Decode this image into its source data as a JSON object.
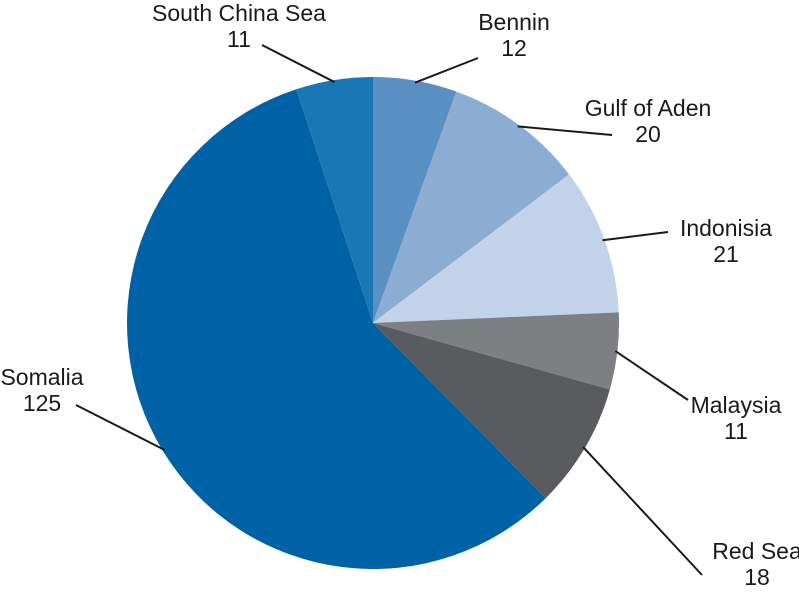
{
  "chart_data": {
    "type": "pie",
    "title": "",
    "slices": [
      {
        "name": "Bennin",
        "value": 12,
        "color": "#5a8fc3"
      },
      {
        "name": "Gulf of Aden",
        "value": 20,
        "color": "#8badd4"
      },
      {
        "name": "Indonisia",
        "value": 21,
        "color": "#c2d3e9"
      },
      {
        "name": "Malaysia",
        "value": 11,
        "color": "#7d7f83"
      },
      {
        "name": "Red Sea",
        "value": 18,
        "color": "#5a5b5e"
      },
      {
        "name": "Somalia",
        "value": 125,
        "color": "#0062a6"
      },
      {
        "name": "South China Sea",
        "value": 11,
        "color": "#1a77b6"
      }
    ],
    "start_angle": "12 o'clock",
    "direction": "clockwise",
    "legend": "none",
    "label_placement": "outside with leader lines"
  }
}
